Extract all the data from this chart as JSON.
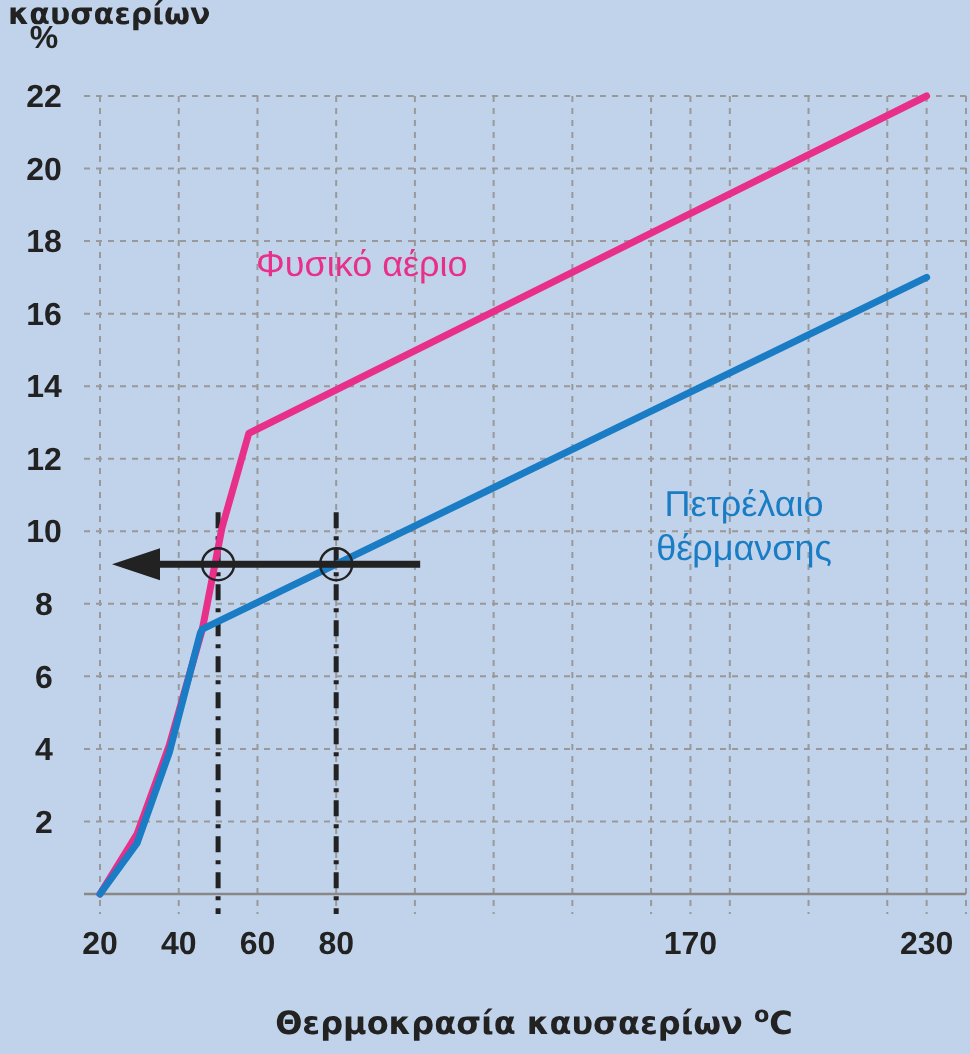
{
  "chart_data": {
    "type": "line",
    "title": "καυσαερίων",
    "xlabel": "Θερμοκρασία καυσαερίων $^{o}$C",
    "ylabel": "%",
    "xlim": [
      20,
      240
    ],
    "xticks": [
      20,
      40,
      60,
      80,
      {
        "value": 100,
        "label": null
      },
      {
        "value": 120,
        "label": null
      },
      {
        "value": 140,
        "label": null
      },
      {
        "value": 160,
        "label": null
      },
      170,
      {
        "value": 180,
        "label": null
      },
      {
        "value": 200,
        "label": null
      },
      {
        "value": 220,
        "label": null
      },
      230,
      {
        "value": 240,
        "label": null
      }
    ],
    "ylim": [
      0,
      22
    ],
    "yticks": [
      {
        "value": 0,
        "label": null
      },
      2,
      4,
      6,
      8,
      10,
      12,
      14,
      16,
      18,
      20,
      22
    ],
    "grid": true,
    "marker": "none",
    "line_style": "solid",
    "series": [
      {
        "name": "Φυσικό αέριο",
        "color": "#e8308a",
        "x": [
          20,
          29.4,
          37.6,
          46,
          51,
          57.8,
          230
        ],
        "values": [
          0,
          1.65,
          4.1,
          7.3,
          10.1,
          12.7,
          22
        ]
      },
      {
        "name": "Πετρέλαιο θέρμανσης",
        "color": "#1a7cc4",
        "x": [
          20,
          29.4,
          37.6,
          45.5,
          46,
          230
        ],
        "values": [
          0,
          1.4,
          3.9,
          7.2,
          7.3,
          17
        ]
      }
    ],
    "ref_lines": [
      {
        "axis": "x",
        "value": 50,
        "color": "#222222",
        "line_style": "dashed"
      },
      {
        "axis": "x",
        "value": 80,
        "color": "#222222",
        "line_style": "dashed"
      }
    ]
  }
}
